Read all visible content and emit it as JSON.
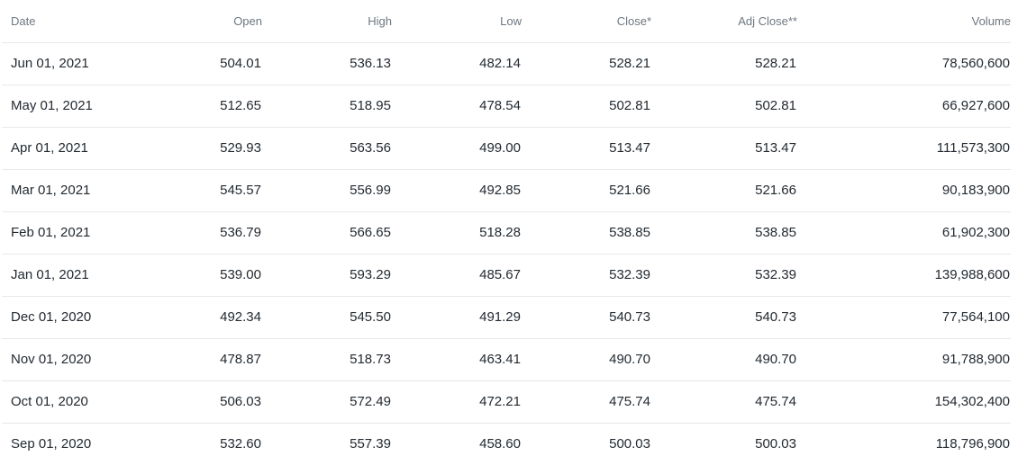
{
  "headers": {
    "date": "Date",
    "open": "Open",
    "high": "High",
    "low": "Low",
    "close": "Close*",
    "adj_close": "Adj Close**",
    "volume": "Volume"
  },
  "rows": [
    {
      "date": "Jun 01, 2021",
      "open": "504.01",
      "high": "536.13",
      "low": "482.14",
      "close": "528.21",
      "adj_close": "528.21",
      "volume": "78,560,600"
    },
    {
      "date": "May 01, 2021",
      "open": "512.65",
      "high": "518.95",
      "low": "478.54",
      "close": "502.81",
      "adj_close": "502.81",
      "volume": "66,927,600"
    },
    {
      "date": "Apr 01, 2021",
      "open": "529.93",
      "high": "563.56",
      "low": "499.00",
      "close": "513.47",
      "adj_close": "513.47",
      "volume": "111,573,300"
    },
    {
      "date": "Mar 01, 2021",
      "open": "545.57",
      "high": "556.99",
      "low": "492.85",
      "close": "521.66",
      "adj_close": "521.66",
      "volume": "90,183,900"
    },
    {
      "date": "Feb 01, 2021",
      "open": "536.79",
      "high": "566.65",
      "low": "518.28",
      "close": "538.85",
      "adj_close": "538.85",
      "volume": "61,902,300"
    },
    {
      "date": "Jan 01, 2021",
      "open": "539.00",
      "high": "593.29",
      "low": "485.67",
      "close": "532.39",
      "adj_close": "532.39",
      "volume": "139,988,600"
    },
    {
      "date": "Dec 01, 2020",
      "open": "492.34",
      "high": "545.50",
      "low": "491.29",
      "close": "540.73",
      "adj_close": "540.73",
      "volume": "77,564,100"
    },
    {
      "date": "Nov 01, 2020",
      "open": "478.87",
      "high": "518.73",
      "low": "463.41",
      "close": "490.70",
      "adj_close": "490.70",
      "volume": "91,788,900"
    },
    {
      "date": "Oct 01, 2020",
      "open": "506.03",
      "high": "572.49",
      "low": "472.21",
      "close": "475.74",
      "adj_close": "475.74",
      "volume": "154,302,400"
    },
    {
      "date": "Sep 01, 2020",
      "open": "532.60",
      "high": "557.39",
      "low": "458.60",
      "close": "500.03",
      "adj_close": "500.03",
      "volume": "118,796,900"
    }
  ]
}
